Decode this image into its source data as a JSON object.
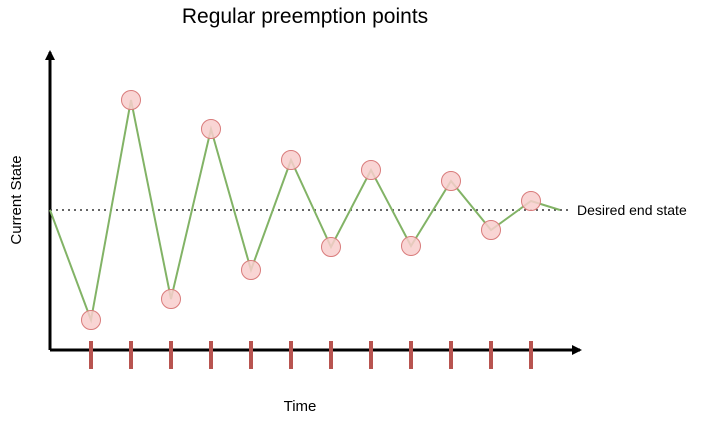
{
  "diagram": {
    "title": "Regular preemption points",
    "y_axis_label": "Current State",
    "x_axis_label": "Time",
    "reference_label": "Desired end state",
    "preemption_point_count": 12,
    "colors": {
      "axis": "#000000",
      "line": "#82b366",
      "point_fill": "#f8cecc",
      "point_stroke": "#d97b7b",
      "tick": "#b85450",
      "reference": "#333333"
    }
  }
}
